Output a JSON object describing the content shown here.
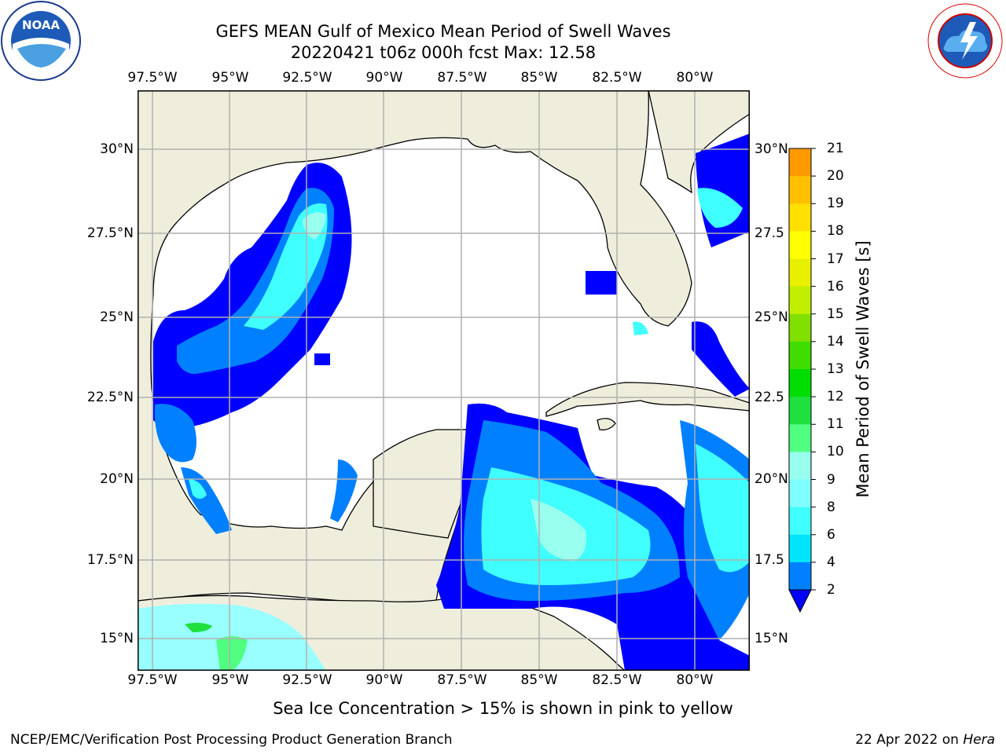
{
  "title": {
    "line1": "GEFS MEAN Gulf of Mexico Mean Period of Swell Waves",
    "line2": "20220421 t06z 000h fcst   Max: 12.58"
  },
  "axes": {
    "lon_labels": [
      "97.5°W",
      "95°W",
      "92.5°W",
      "90°W",
      "87.5°W",
      "85°W",
      "82.5°W",
      "80°W"
    ],
    "lat_labels_left": [
      "30°N",
      "27.5°N",
      "25°N",
      "22.5°N",
      "20°N",
      "17.5°N",
      "15°N"
    ],
    "lat_labels_right": [
      "30°N",
      "27.5",
      "25°N",
      "22.5",
      "20°N",
      "17.5",
      "15°N"
    ]
  },
  "colorbar": {
    "label": "Mean Period of Swell Waves [s]",
    "ticks": [
      "21",
      "20",
      "19",
      "18",
      "17",
      "16",
      "15",
      "14",
      "13",
      "12",
      "11",
      "10",
      "9",
      "8",
      "6",
      "4",
      "2"
    ],
    "colors": [
      "#0000ff",
      "#0080ff",
      "#00e5ff",
      "#40ffff",
      "#80ffff",
      "#99ffee",
      "#50ff80",
      "#20e040",
      "#00dd00",
      "#40dd00",
      "#80e000",
      "#c0f000",
      "#e8f000",
      "#ffff00",
      "#ffe000",
      "#ffc000",
      "#ff9900",
      "#ff7700",
      "#ff5500",
      "#ff2a00",
      "#ff0000"
    ]
  },
  "chart_data": {
    "type": "heatmap",
    "variable": "Mean Period of Swell Waves",
    "units": "s",
    "max": 12.58,
    "lon_range": [
      -98,
      -78
    ],
    "lat_range": [
      14,
      31.5
    ],
    "levels": [
      2,
      4,
      6,
      8,
      9,
      10,
      11,
      12,
      13,
      14,
      15,
      16,
      17,
      18,
      19,
      20,
      21
    ]
  },
  "note": "Sea Ice Concentration > 15% is shown in pink to yellow",
  "footer": {
    "left": "NCEP/EMC/Verification Post Processing Product Generation Branch",
    "right_date": "22 Apr 2022 on ",
    "right_host": "Hera"
  }
}
